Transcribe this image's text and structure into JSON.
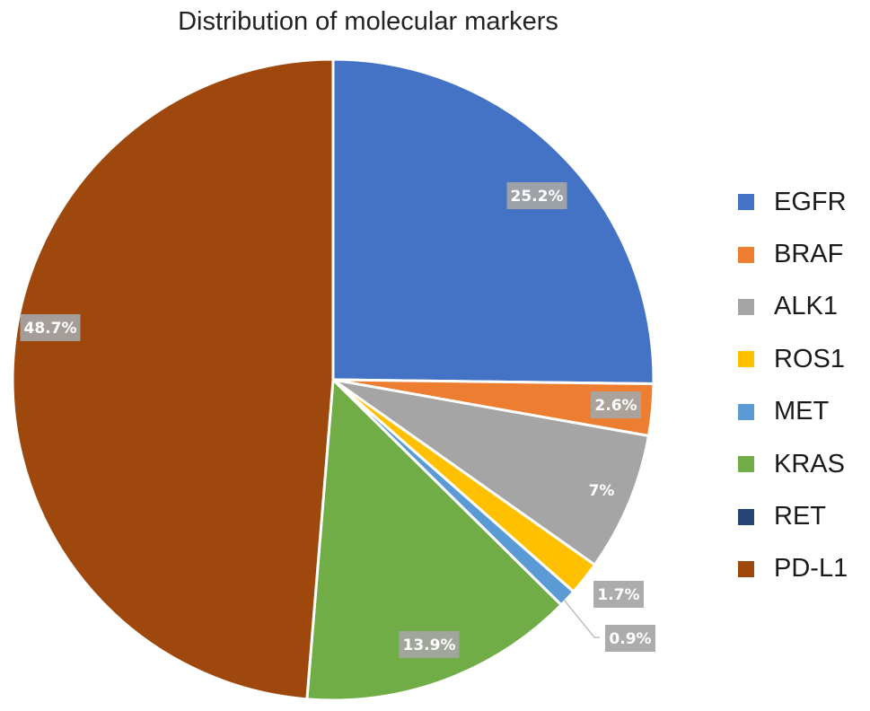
{
  "chart_data": {
    "type": "pie",
    "title": "Distribution of molecular markers",
    "start_angle_deg": 0,
    "direction": "clockwise",
    "legend_position": "right",
    "slices": [
      {
        "label": "EGFR",
        "value": 25.2,
        "display": "25.2%",
        "color": "#4472C4"
      },
      {
        "label": "BRAF",
        "value": 2.6,
        "display": "2.6%",
        "color": "#ED7D31"
      },
      {
        "label": "ALK1",
        "value": 7.0,
        "display": "7%",
        "color": "#A5A5A5"
      },
      {
        "label": "ROS1",
        "value": 1.7,
        "display": "1.7%",
        "color": "#FFC000"
      },
      {
        "label": "MET",
        "value": 0.9,
        "display": "0.9%",
        "color": "#5B9BD5"
      },
      {
        "label": "KRAS",
        "value": 13.9,
        "display": "13.9%",
        "color": "#70AD47"
      },
      {
        "label": "RET",
        "value": 0.0,
        "display": "",
        "color": "#264478"
      },
      {
        "label": "PD-L1",
        "value": 48.7,
        "display": "48.7%",
        "color": "#9E480E"
      }
    ]
  },
  "title": "Distribution of molecular markers",
  "legend": [
    {
      "label": "EGFR",
      "color": "#4472C4"
    },
    {
      "label": "BRAF",
      "color": "#ED7D31"
    },
    {
      "label": "ALK1",
      "color": "#A5A5A5"
    },
    {
      "label": "ROS1",
      "color": "#FFC000"
    },
    {
      "label": "MET",
      "color": "#5B9BD5"
    },
    {
      "label": "KRAS",
      "color": "#70AD47"
    },
    {
      "label": "RET",
      "color": "#264478"
    },
    {
      "label": "PD-L1",
      "color": "#9E480E"
    }
  ]
}
